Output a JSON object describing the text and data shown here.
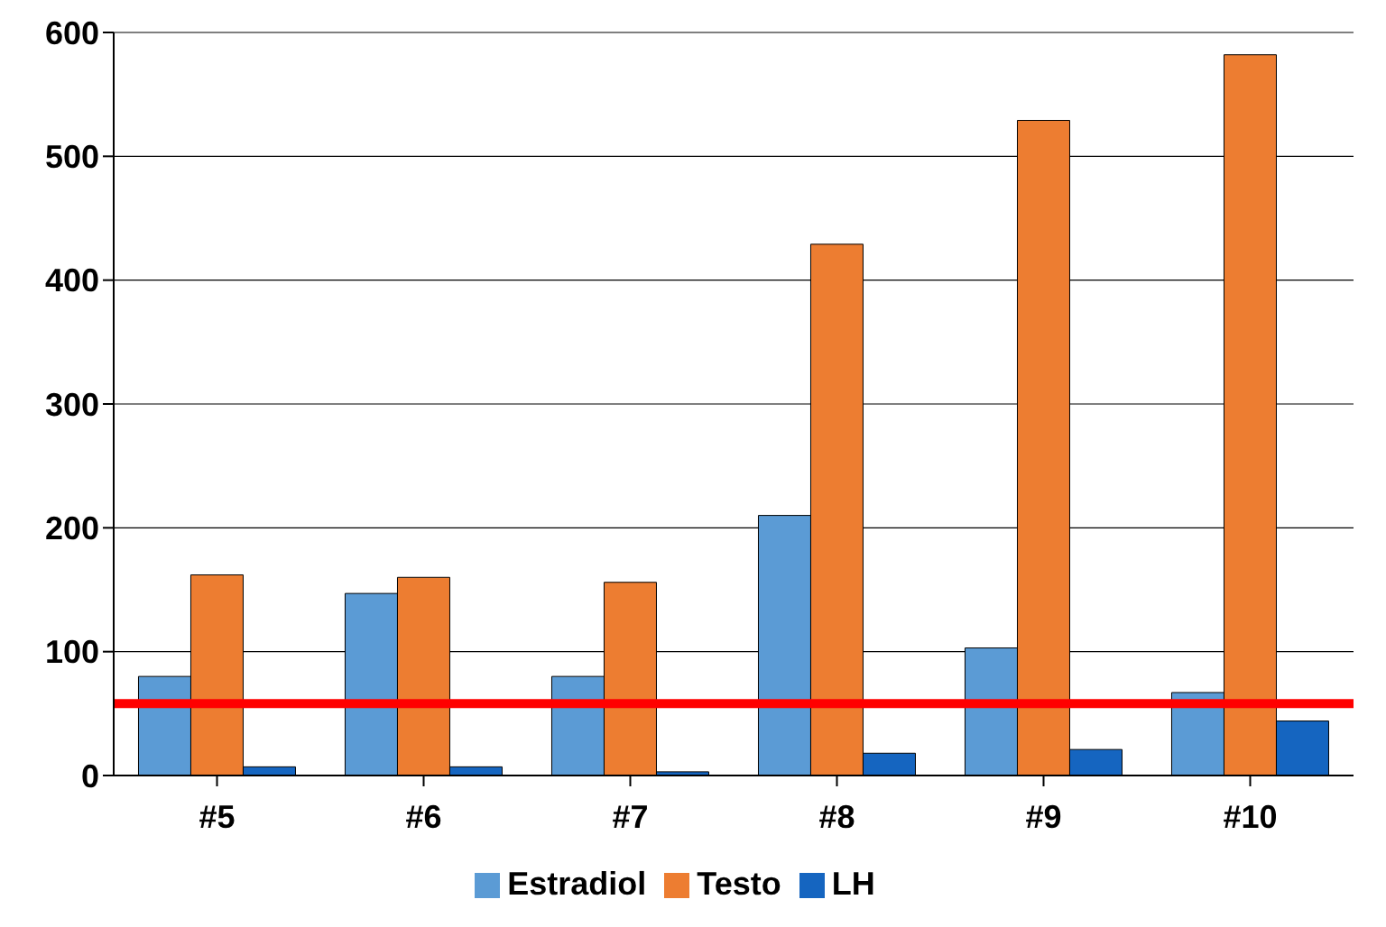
{
  "chart_data": {
    "type": "bar",
    "categories": [
      "#5",
      "#6",
      "#7",
      "#8",
      "#9",
      "#10"
    ],
    "series": [
      {
        "name": "Estradiol",
        "color": "#5b9bd5",
        "values": [
          80,
          147,
          80,
          210,
          103,
          67
        ]
      },
      {
        "name": "Testo",
        "color": "#ed7d31",
        "values": [
          162,
          160,
          156,
          429,
          529,
          582
        ]
      },
      {
        "name": "LH",
        "color": "#1565c0",
        "values": [
          7,
          7,
          3,
          18,
          21,
          44
        ]
      }
    ],
    "ylim": [
      0,
      600
    ],
    "yticks": [
      0,
      100,
      200,
      300,
      400,
      500,
      600
    ],
    "grid": "y",
    "legend": "bottom",
    "ref_lines": [
      {
        "axis": "y",
        "value": 58,
        "color": "#ff0000"
      }
    ]
  }
}
